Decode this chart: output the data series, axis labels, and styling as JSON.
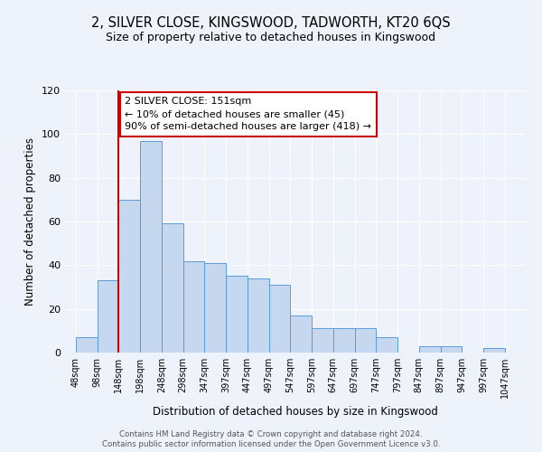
{
  "title": "2, SILVER CLOSE, KINGSWOOD, TADWORTH, KT20 6QS",
  "subtitle": "Size of property relative to detached houses in Kingswood",
  "xlabel": "Distribution of detached houses by size in Kingswood",
  "ylabel": "Number of detached properties",
  "bar_labels": [
    "48sqm",
    "98sqm",
    "148sqm",
    "198sqm",
    "248sqm",
    "298sqm",
    "347sqm",
    "397sqm",
    "447sqm",
    "497sqm",
    "547sqm",
    "597sqm",
    "647sqm",
    "697sqm",
    "747sqm",
    "797sqm",
    "847sqm",
    "897sqm",
    "947sqm",
    "997sqm",
    "1047sqm"
  ],
  "bar_values": [
    7,
    33,
    70,
    97,
    59,
    42,
    41,
    35,
    34,
    31,
    17,
    11,
    11,
    11,
    7,
    0,
    3,
    3,
    0,
    2
  ],
  "bar_color": "#c5d8f0",
  "bar_edge_color": "#5b9bd5",
  "vline_color": "#cc0000",
  "ylim": [
    0,
    120
  ],
  "annotation_text": "2 SILVER CLOSE: 151sqm\n← 10% of detached houses are smaller (45)\n90% of semi-detached houses are larger (418) →",
  "annotation_box_color": "#ffffff",
  "annotation_box_edge_color": "#cc0000",
  "footer_line1": "Contains HM Land Registry data © Crown copyright and database right 2024.",
  "footer_line2": "Contains public sector information licensed under the Open Government Licence v3.0.",
  "background_color": "#eef2fb"
}
